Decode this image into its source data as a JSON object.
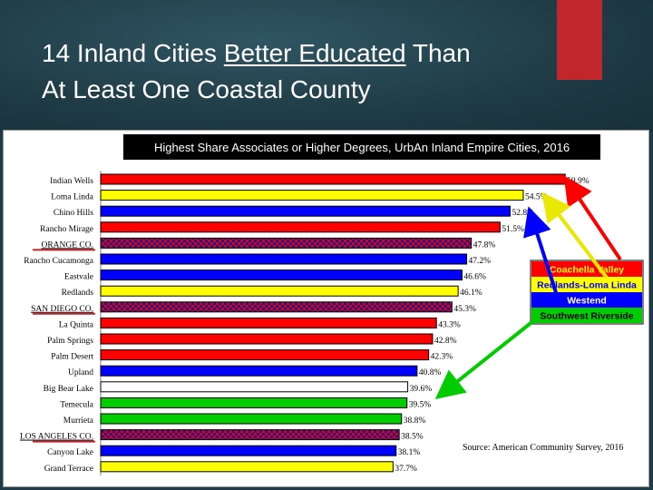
{
  "slide": {
    "title_line1": "14 Inland Cities Better Educated Than",
    "title_line2_pre": "At Least One Coastal County",
    "title_underlined": "Better Educated",
    "title_after_underline": " Than"
  },
  "colors": {
    "background": "#1f3b45",
    "accent_red": "#c0262b",
    "coachella": "#ff0000",
    "redlands": "#ffff00",
    "westend": "#0000ff",
    "southwest": "#00cc00",
    "county": "#7a1f5f"
  },
  "chart_data": {
    "type": "bar",
    "orientation": "horizontal",
    "title": "Highest Share Associates or Higher Degrees, UrbAn Inland Empire Cities,  2016",
    "source": "Source: American Community Survey, 2016",
    "categories": [
      "Indian Wells",
      "Loma Linda",
      "Chino Hills",
      "Rancho Mirage",
      "ORANGE CO.",
      "Rancho Cucamonga",
      "Eastvale",
      "Redlands",
      "SAN DIEGO CO.",
      "La Quinta",
      "Palm Springs",
      "Palm Desert",
      "Upland",
      "Big Bear Lake",
      "Temecula",
      "Murrieta",
      "LOS ANGELES CO.",
      "Canyon Lake",
      "Grand Terrace"
    ],
    "values": [
      59.9,
      54.5,
      52.8,
      51.5,
      47.8,
      47.2,
      46.6,
      46.1,
      45.3,
      43.3,
      42.8,
      42.3,
      40.8,
      39.6,
      39.5,
      38.8,
      38.5,
      38.1,
      37.7
    ],
    "value_labels": [
      "59.9%",
      "54.5%",
      "52.8%",
      "51.5%",
      "47.8%",
      "47.2%",
      "46.6%",
      "46.1%",
      "45.3%",
      "43.3%",
      "42.8%",
      "42.3%",
      "40.8%",
      "39.6%",
      "39.5%",
      "38.8%",
      "38.5%",
      "38.1%",
      "37.7%"
    ],
    "groups": [
      "coachella",
      "redlands",
      "westend",
      "coachella",
      "county",
      "westend",
      "westend",
      "redlands",
      "county",
      "coachella",
      "coachella",
      "coachella",
      "westend",
      "none",
      "southwest",
      "southwest",
      "county",
      "westend",
      "redlands"
    ],
    "underlined_categories": [
      "ORANGE CO.",
      "SAN DIEGO CO.",
      "LOS ANGELES CO."
    ],
    "xlim": [
      0,
      60
    ],
    "grid": false,
    "legend": {
      "placement": "right",
      "entries": [
        {
          "key": "coachella",
          "label": "Coachella Valley"
        },
        {
          "key": "redlands",
          "label": "Redlands-Loma Linda"
        },
        {
          "key": "westend",
          "label": "Westend"
        },
        {
          "key": "southwest",
          "label": "Southwest Riverside"
        }
      ]
    }
  }
}
